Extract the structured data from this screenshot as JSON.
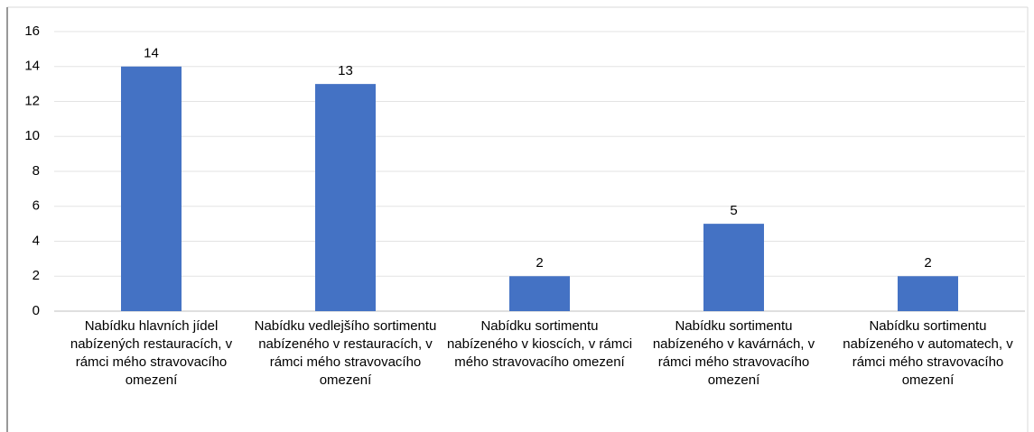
{
  "chart_data": {
    "type": "bar",
    "categories": [
      "Nabídku hlavních jídel nabízených restauracích, v rámci mého stravovacího omezení",
      "Nabídku vedlejšího sortimentu nabízeného v restauracích, v rámci mého stravovacího omezení",
      "Nabídku sortimentu nabízeného v kioscích, v rámci mého stravovacího omezení",
      "Nabídku sortimentu nabízeného v kavárnách, v rámci mého stravovacího omezení",
      "Nabídku sortimentu nabízeného v automatech, v rámci mého stravovacího omezení"
    ],
    "values": [
      14,
      13,
      2,
      5,
      2
    ],
    "color": "#4472c4",
    "ylim": [
      0,
      16
    ],
    "yticks": [
      0,
      2,
      4,
      6,
      8,
      10,
      12,
      14,
      16
    ],
    "grid": true
  }
}
